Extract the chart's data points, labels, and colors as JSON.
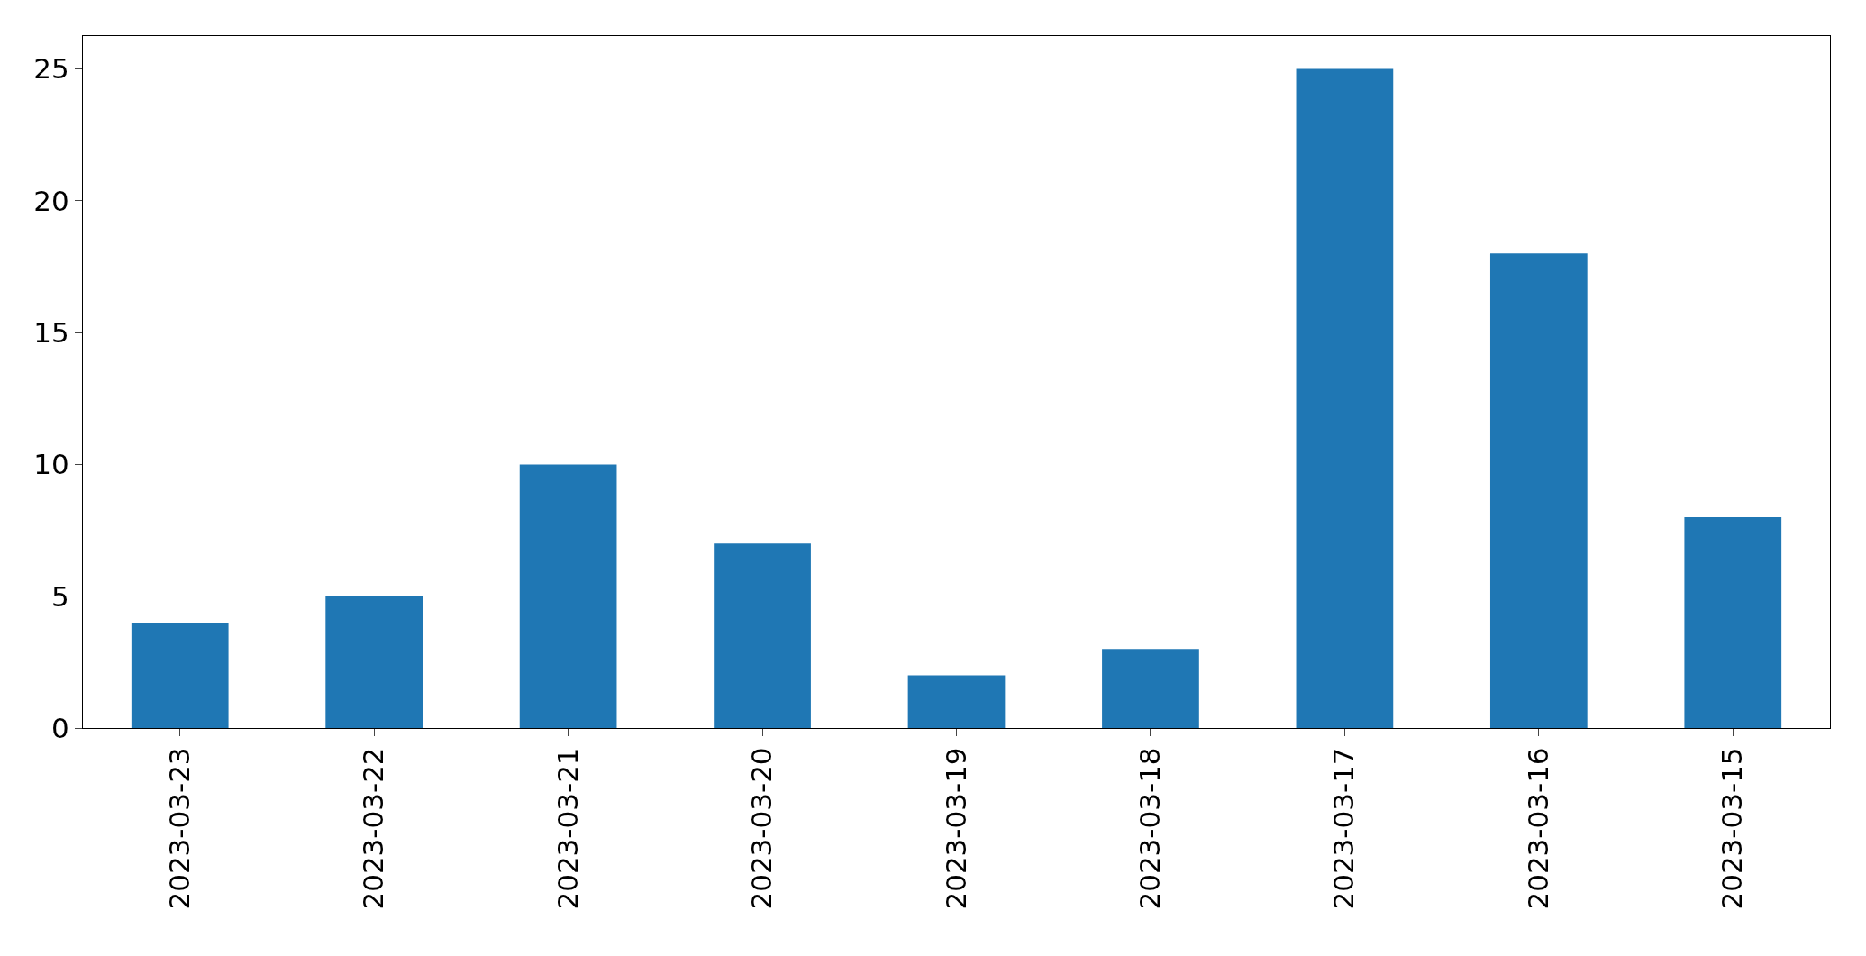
{
  "chart_data": {
    "type": "bar",
    "categories": [
      "2023-03-23",
      "2023-03-22",
      "2023-03-21",
      "2023-03-20",
      "2023-03-19",
      "2023-03-18",
      "2023-03-17",
      "2023-03-16",
      "2023-03-15"
    ],
    "values": [
      4,
      5,
      10,
      7,
      2,
      3,
      25,
      18,
      8
    ],
    "color": "#1f77b4",
    "ylim": [
      0,
      26.25
    ],
    "yticks": [
      0,
      5,
      10,
      15,
      20,
      25
    ]
  }
}
